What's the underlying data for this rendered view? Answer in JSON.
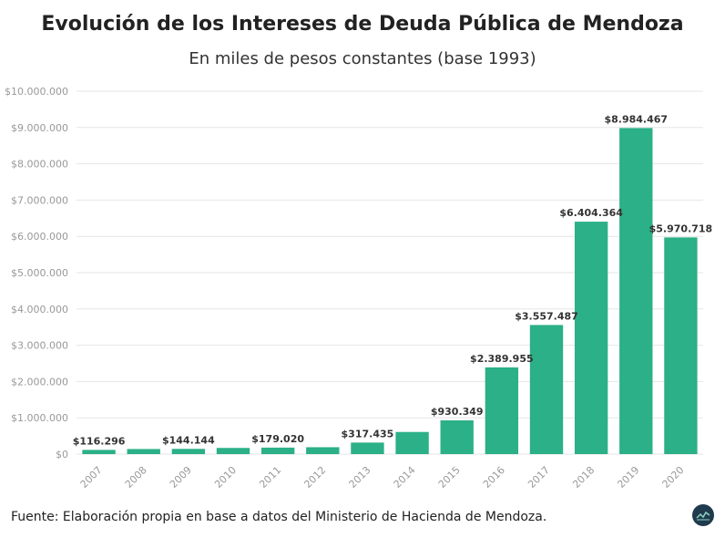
{
  "title": "Evolución de los Intereses de Deuda Pública de Mendoza",
  "subtitle": "En miles de pesos constantes (base 1993)",
  "source": "Fuente: Elaboración propia en base a datos del Ministerio de Hacienda de Mendoza.",
  "logo_icon": "chart-logo-icon",
  "chart_data": {
    "type": "bar",
    "categories": [
      "2007",
      "2008",
      "2009",
      "2010",
      "2011",
      "2012",
      "2013",
      "2014",
      "2015",
      "2016",
      "2017",
      "2018",
      "2019",
      "2020"
    ],
    "values": [
      116296,
      140000,
      144144,
      170000,
      179020,
      190000,
      317435,
      610000,
      930349,
      2389955,
      3557487,
      6404364,
      8984467,
      5970718
    ],
    "data_labels": [
      "$116.296",
      "",
      "$144.144",
      "",
      "$179.020",
      "",
      "$317.435",
      "",
      "$930.349",
      "$2.389.955",
      "$3.557.487",
      "$6.404.364",
      "$8.984.467",
      "$5.970.718"
    ],
    "y_ticks": [
      0,
      1000000,
      2000000,
      3000000,
      4000000,
      5000000,
      6000000,
      7000000,
      8000000,
      9000000,
      10000000
    ],
    "y_tick_labels": [
      "$0",
      "$1.000.000",
      "$2.000.000",
      "$3.000.000",
      "$4.000.000",
      "$5.000.000",
      "$6.000.000",
      "$7.000.000",
      "$8.000.000",
      "$9.000.000",
      "$10.000.000"
    ],
    "ylim": [
      0,
      10000000
    ],
    "xlabel": "",
    "ylabel": "",
    "grid": true,
    "bar_color": "#2bb087",
    "grid_color": "#e6e6e6"
  }
}
